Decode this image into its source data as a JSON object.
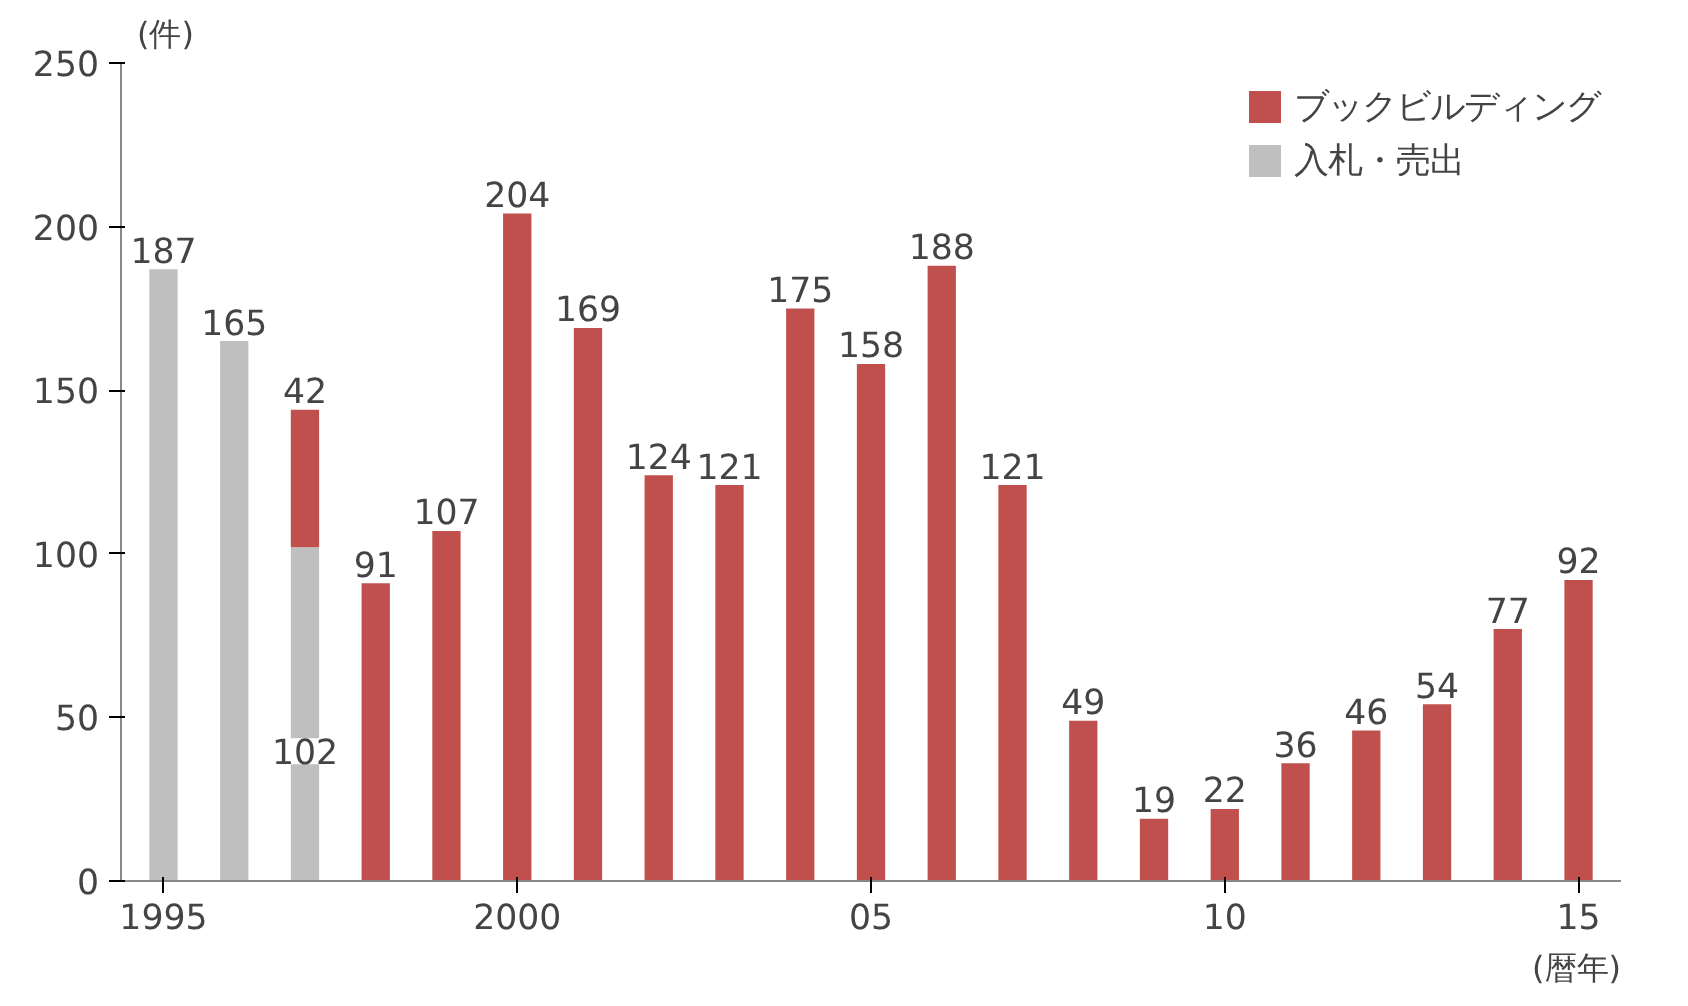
{
  "chart_data": {
    "type": "bar",
    "stacked": true,
    "ylabel": "(件)",
    "xlabel": "(暦年)",
    "x": [
      1995,
      1996,
      1997,
      1998,
      1999,
      2000,
      2001,
      2002,
      2003,
      2004,
      2005,
      2006,
      2007,
      2008,
      2009,
      2010,
      2011,
      2012,
      2013,
      2014,
      2015
    ],
    "series": [
      {
        "name": "入札・売出",
        "color": "#bfbfbf",
        "values": [
          187,
          165,
          102,
          null,
          null,
          null,
          null,
          null,
          null,
          null,
          null,
          null,
          null,
          null,
          null,
          null,
          null,
          null,
          null,
          null,
          null
        ]
      },
      {
        "name": "ブックビルディング",
        "color": "#c0504d",
        "values": [
          null,
          null,
          42,
          91,
          107,
          204,
          169,
          124,
          121,
          175,
          158,
          188,
          121,
          49,
          19,
          22,
          36,
          46,
          54,
          77,
          92
        ]
      }
    ],
    "xlim": [
      1994.4,
      2015.6
    ],
    "xticks": [
      1995,
      {
        "value": 2000,
        "label": "2000"
      },
      {
        "value": 2005,
        "label": "05"
      },
      {
        "value": 2010,
        "label": "10"
      },
      {
        "value": 2015,
        "label": "15"
      }
    ],
    "ylim": [
      0,
      250
    ],
    "yticks": [
      0,
      50,
      100,
      150,
      200,
      250
    ],
    "data_labels": true,
    "legend": "top right",
    "grid": false
  }
}
